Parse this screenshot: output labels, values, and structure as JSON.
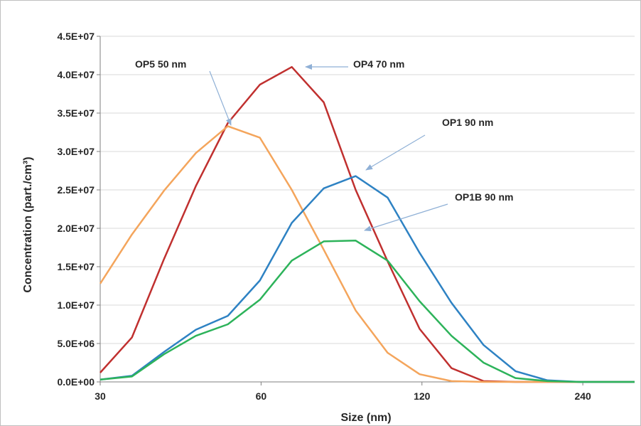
{
  "chart_data": {
    "type": "line",
    "title": "",
    "xlabel": "Size (nm)",
    "ylabel": "Concentration (part./cm³)",
    "x_scale": "log",
    "xlim": [
      30,
      300
    ],
    "ylim": [
      0,
      45000000
    ],
    "grid": true,
    "x_ticks": [
      {
        "value": 30,
        "label": "30"
      },
      {
        "value": 60,
        "label": "60"
      },
      {
        "value": 120,
        "label": "120"
      },
      {
        "value": 240,
        "label": "240"
      }
    ],
    "y_ticks": [
      {
        "value": 0,
        "label": "0.0E+00"
      },
      {
        "value": 5000000,
        "label": "5.0E+06"
      },
      {
        "value": 10000000,
        "label": "1.0E+07"
      },
      {
        "value": 15000000,
        "label": "1.5E+07"
      },
      {
        "value": 20000000,
        "label": "2.0E+07"
      },
      {
        "value": 25000000,
        "label": "2.5E+07"
      },
      {
        "value": 30000000,
        "label": "3.0E+07"
      },
      {
        "value": 35000000,
        "label": "3.5E+07"
      },
      {
        "value": 40000000,
        "label": "4.0E+07"
      },
      {
        "value": 45000000,
        "label": "4.5E+07"
      }
    ],
    "x": [
      30,
      34.4,
      39.5,
      45.3,
      52,
      59.7,
      68.5,
      78.6,
      90.2,
      103.5,
      118.8,
      136.3,
      156.5,
      179.6,
      206.1,
      236.6,
      271.5,
      300
    ],
    "series": [
      {
        "color": "#c0302f",
        "values": [
          1200000,
          5800000,
          16000000,
          25500000,
          33700000,
          38700000,
          41000000,
          36400000,
          25000000,
          15700000,
          6900000,
          1800000,
          100000,
          0,
          0,
          0,
          0,
          0
        ]
      },
      {
        "color": "#f4a55c",
        "values": [
          12800000,
          19200000,
          24900000,
          29800000,
          33300000,
          31800000,
          25000000,
          17200000,
          9300000,
          3800000,
          1000000,
          100000,
          0,
          0,
          0,
          0,
          0,
          0
        ]
      },
      {
        "color": "#2e82c3",
        "values": [
          300000,
          800000,
          3900000,
          6800000,
          8600000,
          13200000,
          20700000,
          25200000,
          26800000,
          24000000,
          16800000,
          10300000,
          4800000,
          1400000,
          200000,
          0,
          0,
          0
        ]
      },
      {
        "color": "#2db35a",
        "values": [
          300000,
          700000,
          3600000,
          6000000,
          7500000,
          10700000,
          15800000,
          18300000,
          18400000,
          15800000,
          10500000,
          6000000,
          2500000,
          500000,
          100000,
          0,
          0,
          0
        ]
      }
    ],
    "annotations": [
      {
        "text": "OP5 50 nm",
        "x": 50,
        "y": 33500000
      },
      {
        "text": "OP4 70 nm",
        "x": 70,
        "y": 41000000
      },
      {
        "text": "OP1 90 nm",
        "x": 90.2,
        "y": 26800000
      },
      {
        "text": "OP1B 90 nm",
        "x": 90.2,
        "y": 19500000
      }
    ],
    "colors": {
      "grid": "#d9d9d9",
      "axis": "#7f7f7f",
      "arrow": "#8fb0d6"
    }
  }
}
